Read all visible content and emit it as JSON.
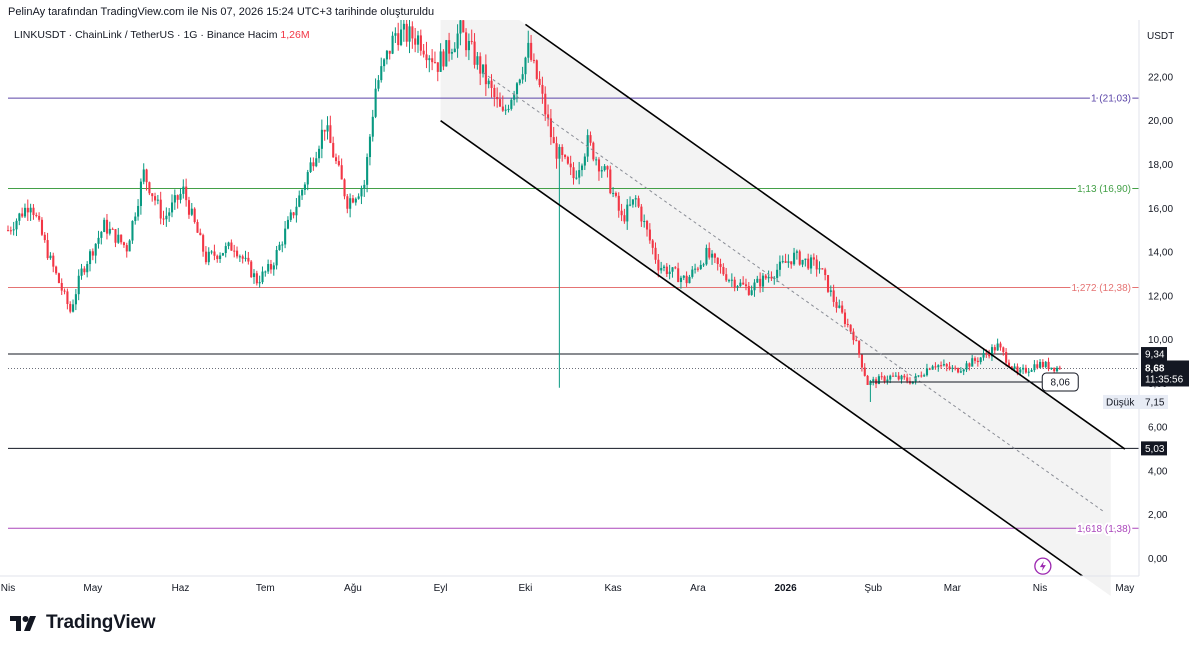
{
  "caption": "PelinAy tarafından TradingView.com ile Nis 07, 2026 15:24 UTC+3 tarihinde oluşturuldu",
  "symbol": {
    "pair": "LINKUSDT",
    "name": "ChainLink / TetherUS",
    "interval": "1G",
    "exchange": "Binance",
    "volume_label": "Hacim",
    "volume_value": "1,26M"
  },
  "currency": "USDT",
  "brand": "TradingView",
  "colors": {
    "up": "#089981",
    "down": "#f23645",
    "fib_1": "#5b45a8",
    "fib_113": "#43a047",
    "fib_1272": "#e57373",
    "fib_1618": "#ab47bc",
    "channel_fill": "#f3f3f3",
    "axis_text": "#131722"
  },
  "chart_data": {
    "type": "candlestick",
    "y_axis": {
      "min": -0.8,
      "max": 24.6,
      "ticks": [
        0,
        2,
        4,
        6,
        8,
        10,
        12,
        14,
        16,
        18,
        20,
        22
      ],
      "tick_labels": [
        "0,00",
        "2,00",
        "4,00",
        "6,00",
        "8,00",
        "10,00",
        "12,00",
        "14,00",
        "16,00",
        "18,00",
        "20,00",
        "22,00"
      ]
    },
    "x_axis": {
      "months": [
        "Nis",
        "May",
        "Haz",
        "Tem",
        "Ağu",
        "Eyl",
        "Eki",
        "Kas",
        "Ara",
        "2026",
        "Şub",
        "Mar",
        "Nis",
        "May"
      ],
      "month_start_day": [
        0,
        30,
        61,
        91,
        122,
        153,
        183,
        214,
        244,
        275,
        306,
        334,
        365,
        395
      ]
    },
    "last_day": 372,
    "candles_ohlc_waypoints": [
      [
        0,
        15.0
      ],
      [
        8,
        16.3
      ],
      [
        15,
        13.6
      ],
      [
        22,
        11.3
      ],
      [
        26,
        13.1
      ],
      [
        34,
        15.2
      ],
      [
        42,
        14.2
      ],
      [
        48,
        17.6
      ],
      [
        55,
        15.5
      ],
      [
        62,
        16.8
      ],
      [
        70,
        13.7
      ],
      [
        80,
        14.3
      ],
      [
        88,
        12.7
      ],
      [
        93,
        13.3
      ],
      [
        103,
        16.5
      ],
      [
        112,
        19.8
      ],
      [
        120,
        16.3
      ],
      [
        126,
        17.1
      ],
      [
        130,
        21.5
      ],
      [
        137,
        24.0
      ],
      [
        145,
        23.8
      ],
      [
        152,
        22.6
      ],
      [
        160,
        24.1
      ],
      [
        167,
        22.4
      ],
      [
        175,
        20.2
      ],
      [
        184,
        23.2
      ],
      [
        188,
        21.5
      ],
      [
        193,
        18.8
      ],
      [
        200,
        17.4
      ],
      [
        205,
        19.0
      ],
      [
        212,
        17.4
      ],
      [
        217,
        15.5
      ],
      [
        222,
        16.4
      ],
      [
        230,
        13.4
      ],
      [
        240,
        12.7
      ],
      [
        247,
        13.9
      ],
      [
        255,
        12.8
      ],
      [
        262,
        12.3
      ],
      [
        270,
        13.0
      ],
      [
        278,
        13.8
      ],
      [
        287,
        13.3
      ],
      [
        292,
        11.8
      ],
      [
        299,
        10.2
      ],
      [
        304,
        8.0
      ],
      [
        312,
        8.3
      ],
      [
        320,
        8.1
      ],
      [
        327,
        8.9
      ],
      [
        335,
        8.6
      ],
      [
        343,
        9.1
      ],
      [
        350,
        9.7
      ],
      [
        357,
        8.4
      ],
      [
        364,
        8.9
      ],
      [
        372,
        8.68
      ]
    ],
    "price_lines": [
      {
        "label": "1 (21,03)",
        "value": 21.03,
        "color": "#5b45a8"
      },
      {
        "label": "1,13 (16,90)",
        "value": 16.9,
        "color": "#43a047"
      },
      {
        "label": "1,272 (12,38)",
        "value": 12.38,
        "color": "#e57373"
      },
      {
        "label": "1,618 (1,38)",
        "value": 1.38,
        "color": "#ab47bc"
      }
    ],
    "horizontal_levels": [
      {
        "value": 9.34,
        "label": "9,34"
      },
      {
        "value": 5.03,
        "label": "5,03"
      }
    ],
    "support_segment": {
      "value": 8.06,
      "label": "8,06",
      "from_day": 305,
      "to_day": 358
    },
    "channel": {
      "upper": {
        "from_day": 183,
        "from_value": 24.4,
        "to_day": 395,
        "to_value": 5.0
      },
      "lower": {
        "from_day": 153,
        "from_value": 20.0,
        "to_day": 380,
        "to_value": -0.8
      },
      "mid": {
        "from_day": 168,
        "from_value": 22.2,
        "to_day": 388,
        "to_value": 2.1
      }
    },
    "spike": {
      "day": 195,
      "low": 7.8
    },
    "current_price": {
      "value": 8.68,
      "label": "8,68",
      "countdown": "11:35:56"
    },
    "low": {
      "label": "Düşük",
      "value": 7.15,
      "text": "7,15"
    }
  }
}
